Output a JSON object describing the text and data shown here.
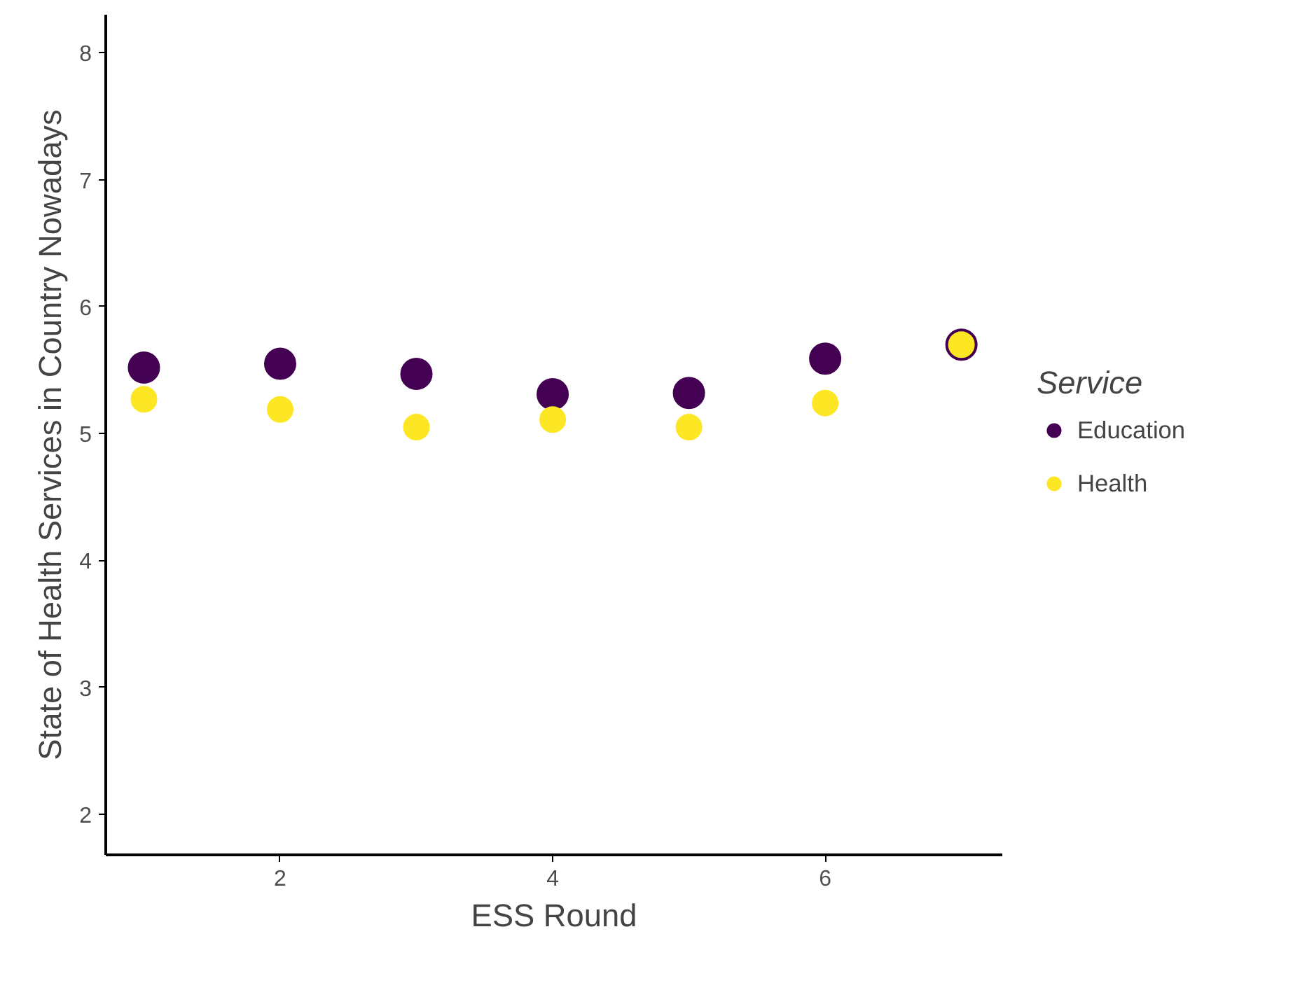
{
  "chart_data": {
    "type": "scatter",
    "xlabel": "ESS Round",
    "ylabel": "State of Health Services in Country Nowadays",
    "legend_title": "Service",
    "x": [
      1,
      2,
      3,
      4,
      5,
      6,
      7
    ],
    "series": [
      {
        "name": "Education",
        "color": "#440154",
        "values": [
          5.52,
          5.55,
          5.47,
          5.31,
          5.32,
          5.59,
          5.7
        ]
      },
      {
        "name": "Health",
        "color": "#fde725",
        "values": [
          5.27,
          5.19,
          5.05,
          5.11,
          5.05,
          5.24,
          5.7
        ]
      }
    ],
    "xlim": [
      0.72,
      7.3
    ],
    "ylim": [
      1.68,
      8.3
    ],
    "xticks": [
      2,
      4,
      6
    ],
    "yticks": [
      2,
      3,
      4,
      5,
      6,
      7,
      8
    ],
    "grid": false,
    "legend": "right",
    "marker": "circle"
  }
}
